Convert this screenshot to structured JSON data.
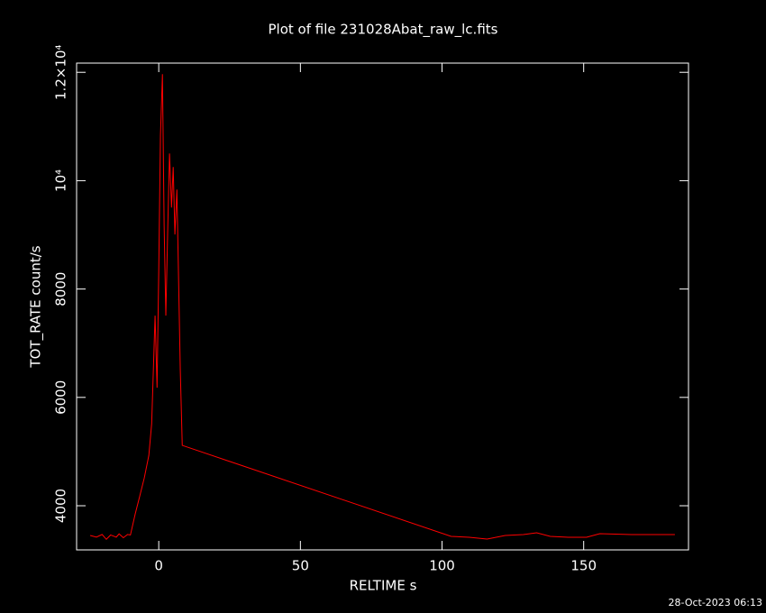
{
  "chart_data": {
    "type": "line",
    "title": "Plot of file 231028Abat_raw_lc.fits",
    "x_label": "RELTIME  s",
    "y_label": "TOT_RATE  count/s",
    "footer": "28-Oct-2023 06:13",
    "xlim": [
      -29,
      187
    ],
    "ylim": [
      3185,
      12170
    ],
    "xticks": [
      0,
      50,
      100,
      150
    ],
    "yticks": [
      4000,
      6000,
      8000,
      {
        "value": 10000,
        "label": "10⁴"
      },
      {
        "value": 12000,
        "label": "1.2×10⁴"
      }
    ],
    "x": [
      -24.2,
      -22,
      -20,
      -18.5,
      -17,
      -15,
      -14,
      -12.5,
      -11,
      -10,
      -8.3,
      -6.7,
      -5.1,
      -3.5,
      -2.5,
      -1.3,
      -0.6,
      0,
      0.6,
      1.3,
      1.9,
      2.5,
      3.2,
      3.8,
      4.5,
      5.1,
      5.7,
      6.4,
      7.0,
      7.6,
      8.3,
      103.2,
      109.6,
      115.9,
      122.3,
      128.7,
      133.4,
      138.2,
      144.6,
      151.0,
      155.7,
      166.9,
      182.2
    ],
    "series": [
      {
        "name": "TOT_RATE",
        "color": "#ff0000",
        "values": [
          3451,
          3420,
          3470,
          3380,
          3460,
          3420,
          3480,
          3410,
          3470,
          3460,
          3850,
          4180,
          4515,
          4930,
          5513,
          7509,
          6178,
          8340,
          10835,
          11966,
          9172,
          7509,
          9172,
          10502,
          9505,
          10253,
          9006,
          9837,
          8174,
          6511,
          5114,
          3435,
          3418,
          3385,
          3451,
          3468,
          3501,
          3435,
          3418,
          3418,
          3484,
          3468,
          3468
        ]
      }
    ]
  }
}
